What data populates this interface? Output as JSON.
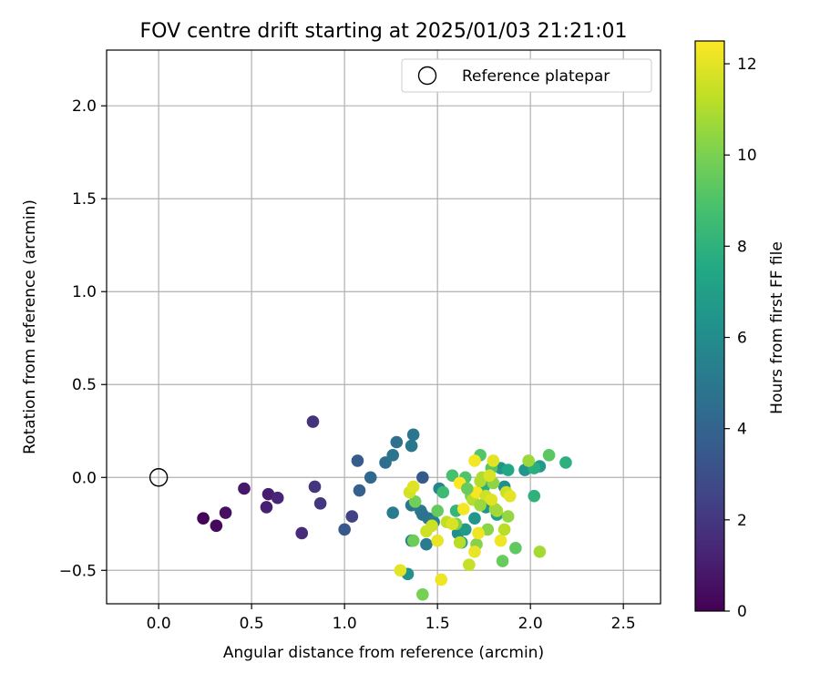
{
  "chart_data": {
    "type": "scatter",
    "title": "FOV centre drift starting at 2025/01/03 21:21:01",
    "xlabel": "Angular distance from reference (arcmin)",
    "ylabel": "Rotation from reference (arcmin)",
    "xlim": [
      -0.28,
      2.7
    ],
    "ylim": [
      -0.68,
      2.3
    ],
    "xticks": [
      0.0,
      0.5,
      1.0,
      1.5,
      2.0,
      2.5
    ],
    "xtick_labels": [
      "0.0",
      "0.5",
      "1.0",
      "1.5",
      "2.0",
      "2.5"
    ],
    "yticks": [
      -0.5,
      0.0,
      0.5,
      1.0,
      1.5,
      2.0
    ],
    "ytick_labels": [
      "−0.5",
      "0.0",
      "0.5",
      "1.0",
      "1.5",
      "2.0"
    ],
    "grid": true,
    "legend": {
      "position": "top-right",
      "entries": [
        {
          "label": "Reference platepar",
          "marker": "open-circle",
          "x": 0.0,
          "y": 0.0
        }
      ]
    },
    "colorbar": {
      "label": "Hours from first FF file",
      "colormap": "viridis",
      "range": [
        0,
        12.5
      ],
      "ticks": [
        0,
        2,
        4,
        6,
        8,
        10,
        12
      ],
      "tick_labels": [
        "0",
        "2",
        "4",
        "6",
        "8",
        "10",
        "12"
      ]
    },
    "series": [
      {
        "points": [
          [
            0.24,
            -0.22,
            0.1
          ],
          [
            0.31,
            -0.26,
            0.3
          ],
          [
            0.36,
            -0.19,
            0.5
          ],
          [
            0.46,
            -0.06,
            0.8
          ],
          [
            0.59,
            -0.09,
            1.0
          ],
          [
            0.58,
            -0.16,
            1.1
          ],
          [
            0.64,
            -0.11,
            1.3
          ],
          [
            0.77,
            -0.3,
            1.5
          ],
          [
            0.83,
            0.3,
            1.8
          ],
          [
            0.84,
            -0.05,
            1.9
          ],
          [
            0.87,
            -0.14,
            2.0
          ],
          [
            1.04,
            -0.21,
            2.4
          ],
          [
            1.0,
            -0.28,
            3.4
          ],
          [
            1.07,
            0.09,
            3.6
          ],
          [
            1.08,
            -0.07,
            3.9
          ],
          [
            1.14,
            0.0,
            4.2
          ],
          [
            1.22,
            0.08,
            4.5
          ],
          [
            1.26,
            0.12,
            4.8
          ],
          [
            1.28,
            0.19,
            4.6
          ],
          [
            1.37,
            0.23,
            4.9
          ],
          [
            1.36,
            0.17,
            5.0
          ],
          [
            1.26,
            -0.19,
            5.2
          ],
          [
            1.42,
            0.0,
            3.5
          ],
          [
            1.36,
            -0.15,
            5.0
          ],
          [
            1.41,
            -0.18,
            5.1
          ],
          [
            1.45,
            -0.22,
            4.9
          ],
          [
            1.48,
            -0.24,
            5.3
          ],
          [
            1.42,
            -0.2,
            4.7
          ],
          [
            1.51,
            -0.06,
            5.6
          ],
          [
            1.36,
            -0.34,
            5.5
          ],
          [
            1.44,
            -0.36,
            5.2
          ],
          [
            1.34,
            -0.52,
            6.3
          ],
          [
            1.61,
            -0.3,
            6.1
          ],
          [
            1.63,
            -0.35,
            7.1
          ],
          [
            1.65,
            -0.28,
            6.8
          ],
          [
            1.7,
            -0.22,
            6.5
          ],
          [
            1.76,
            -0.16,
            6.4
          ],
          [
            1.84,
            0.05,
            6.6
          ],
          [
            1.86,
            -0.05,
            6.2
          ],
          [
            1.97,
            0.04,
            6.5
          ],
          [
            2.05,
            0.06,
            6.8
          ],
          [
            1.82,
            -0.2,
            7.0
          ],
          [
            1.88,
            0.04,
            7.5
          ],
          [
            2.02,
            0.05,
            7.8
          ],
          [
            2.19,
            0.08,
            7.9
          ],
          [
            2.02,
            -0.1,
            8.0
          ],
          [
            1.75,
            -0.05,
            7.8
          ],
          [
            1.6,
            -0.18,
            8.2
          ],
          [
            1.53,
            -0.08,
            8.5
          ],
          [
            1.58,
            0.01,
            8.8
          ],
          [
            1.65,
            0.0,
            9.0
          ],
          [
            1.73,
            0.12,
            9.1
          ],
          [
            1.79,
            0.05,
            9.2
          ],
          [
            2.1,
            0.12,
            9.3
          ],
          [
            1.92,
            -0.38,
            9.4
          ],
          [
            1.85,
            -0.45,
            9.6
          ],
          [
            1.5,
            -0.18,
            9.5
          ],
          [
            1.38,
            -0.13,
            9.8
          ],
          [
            1.37,
            -0.34,
            9.7
          ],
          [
            1.42,
            -0.63,
            9.9
          ],
          [
            1.6,
            -0.25,
            10.0
          ],
          [
            1.68,
            -0.1,
            10.1
          ],
          [
            1.71,
            -0.36,
            10.2
          ],
          [
            1.77,
            -0.28,
            10.3
          ],
          [
            1.8,
            -0.03,
            10.4
          ],
          [
            1.88,
            -0.21,
            10.5
          ],
          [
            1.99,
            0.09,
            10.6
          ],
          [
            2.05,
            -0.4,
            10.8
          ],
          [
            1.82,
            -0.18,
            10.9
          ],
          [
            1.74,
            0.0,
            11.0
          ],
          [
            1.69,
            -0.12,
            11.1
          ],
          [
            1.62,
            -0.35,
            11.2
          ],
          [
            1.55,
            -0.24,
            11.3
          ],
          [
            1.47,
            -0.26,
            11.5
          ],
          [
            1.44,
            -0.29,
            11.6
          ],
          [
            1.35,
            -0.08,
            11.7
          ],
          [
            1.37,
            -0.05,
            11.9
          ],
          [
            1.3,
            -0.5,
            12.0
          ],
          [
            1.52,
            -0.55,
            12.2
          ],
          [
            1.5,
            -0.34,
            12.1
          ],
          [
            1.58,
            -0.25,
            11.8
          ],
          [
            1.64,
            -0.17,
            12.3
          ],
          [
            1.67,
            -0.47,
            11.4
          ],
          [
            1.7,
            -0.4,
            12.1
          ],
          [
            1.72,
            -0.3,
            12.2
          ],
          [
            1.71,
            -0.08,
            12.4
          ],
          [
            1.73,
            -0.02,
            11.0
          ],
          [
            1.76,
            -0.1,
            11.6
          ],
          [
            1.78,
            0.01,
            11.8
          ],
          [
            1.8,
            0.09,
            12.0
          ],
          [
            1.7,
            0.09,
            12.3
          ],
          [
            1.81,
            -0.17,
            10.7
          ],
          [
            1.84,
            -0.34,
            12.2
          ],
          [
            1.86,
            -0.28,
            11.2
          ],
          [
            1.87,
            -0.08,
            11.5
          ],
          [
            1.89,
            -0.1,
            12.0
          ],
          [
            1.62,
            -0.03,
            12.5
          ],
          [
            1.73,
            -0.15,
            10.6
          ],
          [
            1.79,
            -0.12,
            11.9
          ],
          [
            1.66,
            -0.06,
            9.6
          ]
        ]
      }
    ]
  }
}
